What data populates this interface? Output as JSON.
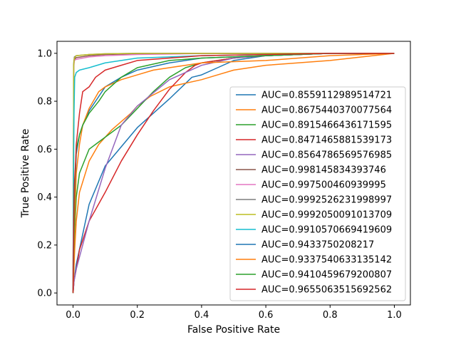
{
  "chart_data": {
    "type": "line",
    "title": "",
    "xlabel": "False Positive Rate",
    "ylabel": "True Positive Rate",
    "xlim": [
      -0.05,
      1.05
    ],
    "ylim": [
      -0.05,
      1.05
    ],
    "xticks": [
      "0.0",
      "0.2",
      "0.4",
      "0.6",
      "0.8",
      "1.0"
    ],
    "yticks": [
      "0.0",
      "0.2",
      "0.4",
      "0.6",
      "0.8",
      "1.0"
    ],
    "grid": false,
    "legend_position": "center-right",
    "series": [
      {
        "name": "AUC=0.8559112989514721",
        "color": "#1f77b4",
        "x": [
          0,
          0.003,
          0.01,
          0.05,
          0.1,
          0.2,
          0.3,
          0.37,
          0.4,
          0.45,
          0.5,
          0.6,
          0.8,
          1.0
        ],
        "y": [
          0,
          0.05,
          0.12,
          0.37,
          0.53,
          0.69,
          0.81,
          0.9,
          0.91,
          0.94,
          0.97,
          0.99,
          1.0,
          1.0
        ]
      },
      {
        "name": "AUC=0.8675440370077564",
        "color": "#ff7f0e",
        "x": [
          0,
          0.005,
          0.01,
          0.02,
          0.05,
          0.08,
          0.12,
          0.18,
          0.2,
          0.24,
          0.3,
          0.4,
          0.45,
          0.5,
          0.6,
          0.8,
          1.0
        ],
        "y": [
          0,
          0.18,
          0.3,
          0.42,
          0.55,
          0.62,
          0.68,
          0.75,
          0.78,
          0.82,
          0.86,
          0.89,
          0.91,
          0.93,
          0.95,
          0.97,
          1.0
        ]
      },
      {
        "name": "AUC=0.8915466436171595",
        "color": "#2ca02c",
        "x": [
          0,
          0.003,
          0.01,
          0.02,
          0.05,
          0.08,
          0.15,
          0.2,
          0.25,
          0.3,
          0.35,
          0.4,
          0.5,
          0.6,
          0.8,
          1.0
        ],
        "y": [
          0,
          0.2,
          0.4,
          0.5,
          0.6,
          0.63,
          0.7,
          0.77,
          0.84,
          0.9,
          0.94,
          0.96,
          0.98,
          0.99,
          1.0,
          1.0
        ]
      },
      {
        "name": "AUC=0.8471465881539173",
        "color": "#d62728",
        "x": [
          0,
          0.003,
          0.01,
          0.02,
          0.05,
          0.1,
          0.15,
          0.2,
          0.25,
          0.3,
          0.35,
          0.38,
          0.4,
          0.5,
          0.6,
          0.8,
          1.0
        ],
        "y": [
          0,
          0.05,
          0.1,
          0.18,
          0.3,
          0.42,
          0.55,
          0.66,
          0.76,
          0.85,
          0.92,
          0.95,
          0.96,
          0.98,
          0.99,
          1.0,
          1.0
        ]
      },
      {
        "name": "AUC=0.8564786569576985",
        "color": "#9467bd",
        "x": [
          0,
          0.003,
          0.01,
          0.05,
          0.1,
          0.15,
          0.2,
          0.3,
          0.4,
          0.5,
          0.6,
          0.8,
          1.0
        ],
        "y": [
          0,
          0.05,
          0.1,
          0.3,
          0.52,
          0.7,
          0.78,
          0.89,
          0.95,
          0.98,
          0.99,
          1.0,
          1.0
        ]
      },
      {
        "name": "AUC=0.998145834393746",
        "color": "#8c564b",
        "x": [
          0,
          0.002,
          0.004,
          0.01,
          0.05,
          0.1,
          0.2,
          0.4,
          1.0
        ],
        "y": [
          0,
          0.95,
          0.975,
          0.982,
          0.99,
          0.995,
          0.998,
          1.0,
          1.0
        ]
      },
      {
        "name": "AUC=0.997500460939995",
        "color": "#e377c2",
        "x": [
          0,
          0.002,
          0.004,
          0.01,
          0.05,
          0.1,
          0.2,
          0.4,
          1.0
        ],
        "y": [
          0,
          0.94,
          0.97,
          0.975,
          0.985,
          0.99,
          0.995,
          0.999,
          1.0
        ]
      },
      {
        "name": "AUC=0.9992526231998997",
        "color": "#7f7f7f",
        "x": [
          0,
          0.002,
          0.004,
          0.01,
          0.05,
          0.1,
          0.2,
          1.0
        ],
        "y": [
          0,
          0.96,
          0.985,
          0.99,
          0.995,
          0.998,
          1.0,
          1.0
        ]
      },
      {
        "name": "AUC=0.9992050091013709",
        "color": "#bcbd22",
        "x": [
          0,
          0.002,
          0.004,
          0.01,
          0.05,
          0.1,
          0.2,
          1.0
        ],
        "y": [
          0,
          0.95,
          0.98,
          0.99,
          0.995,
          0.998,
          1.0,
          1.0
        ]
      },
      {
        "name": "AUC=0.9910570669419609",
        "color": "#17becf",
        "x": [
          0,
          0.001,
          0.003,
          0.005,
          0.01,
          0.02,
          0.05,
          0.1,
          0.2,
          0.4,
          0.6,
          0.8,
          1.0
        ],
        "y": [
          0,
          0.38,
          0.75,
          0.9,
          0.92,
          0.93,
          0.94,
          0.96,
          0.98,
          0.99,
          0.995,
          1.0,
          1.0
        ]
      },
      {
        "name": "AUC=0.9433750208217",
        "color": "#1f77b4",
        "x": [
          0,
          0.003,
          0.005,
          0.01,
          0.02,
          0.03,
          0.05,
          0.08,
          0.1,
          0.15,
          0.2,
          0.3,
          0.4,
          0.6,
          0.8,
          1.0
        ],
        "y": [
          0,
          0.2,
          0.4,
          0.58,
          0.66,
          0.7,
          0.76,
          0.82,
          0.86,
          0.9,
          0.93,
          0.96,
          0.98,
          0.99,
          1.0,
          1.0
        ]
      },
      {
        "name": "AUC=0.9337540633135142",
        "color": "#ff7f0e",
        "x": [
          0,
          0.003,
          0.005,
          0.01,
          0.02,
          0.03,
          0.05,
          0.08,
          0.1,
          0.15,
          0.2,
          0.25,
          0.3,
          0.4,
          0.6,
          0.8,
          1.0
        ],
        "y": [
          0,
          0.15,
          0.3,
          0.5,
          0.62,
          0.7,
          0.77,
          0.84,
          0.86,
          0.89,
          0.91,
          0.93,
          0.94,
          0.96,
          0.97,
          0.99,
          1.0
        ]
      },
      {
        "name": "AUC=0.9410459679200807",
        "color": "#2ca02c",
        "x": [
          0,
          0.003,
          0.005,
          0.01,
          0.02,
          0.03,
          0.05,
          0.08,
          0.1,
          0.15,
          0.2,
          0.3,
          0.4,
          0.6,
          0.8,
          1.0
        ],
        "y": [
          0,
          0.25,
          0.45,
          0.6,
          0.66,
          0.7,
          0.75,
          0.8,
          0.84,
          0.9,
          0.94,
          0.97,
          0.98,
          0.99,
          1.0,
          1.0
        ]
      },
      {
        "name": "AUC=0.9655063515692562",
        "color": "#d62728",
        "x": [
          0,
          0.002,
          0.004,
          0.008,
          0.01,
          0.02,
          0.03,
          0.05,
          0.07,
          0.1,
          0.15,
          0.2,
          0.3,
          0.4,
          0.6,
          0.8,
          1.0
        ],
        "y": [
          0,
          0.3,
          0.45,
          0.55,
          0.62,
          0.75,
          0.84,
          0.86,
          0.9,
          0.93,
          0.95,
          0.97,
          0.98,
          0.99,
          0.995,
          1.0,
          1.0
        ]
      }
    ]
  }
}
